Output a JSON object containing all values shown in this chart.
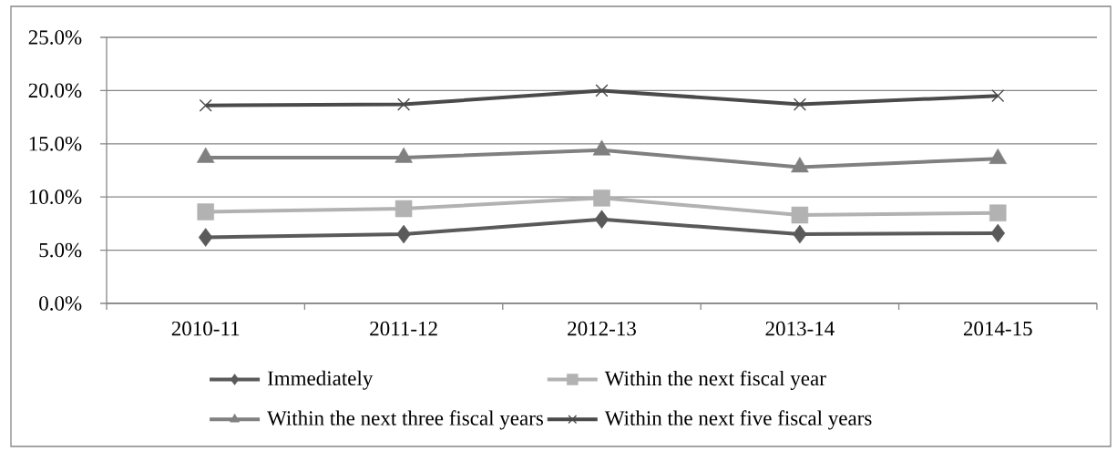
{
  "chart_data": {
    "type": "line",
    "categories": [
      "2010-11",
      "2011-12",
      "2012-13",
      "2013-14",
      "2014-15"
    ],
    "series": [
      {
        "name": "Immediately",
        "color": "#5a5a5a",
        "marker": "diamond",
        "values": [
          6.2,
          6.5,
          7.9,
          6.5,
          6.6
        ]
      },
      {
        "name": "Within the next fiscal year",
        "color": "#b2b2b2",
        "marker": "square",
        "values": [
          8.6,
          8.9,
          9.9,
          8.3,
          8.5
        ]
      },
      {
        "name": "Within the next three fiscal years",
        "color": "#808080",
        "marker": "triangle",
        "values": [
          13.7,
          13.7,
          14.4,
          12.8,
          13.6
        ]
      },
      {
        "name": "Within the next five fiscal years",
        "color": "#4a4a4a",
        "marker": "cross",
        "values": [
          18.6,
          18.7,
          20.0,
          18.7,
          19.5
        ]
      }
    ],
    "ylim": [
      0,
      25
    ],
    "yticks": [
      {
        "value": 0,
        "label": "0.0%"
      },
      {
        "value": 5,
        "label": "5.0%"
      },
      {
        "value": 10,
        "label": "10.0%"
      },
      {
        "value": 15,
        "label": "15.0%"
      },
      {
        "value": 20,
        "label": "20.0%"
      },
      {
        "value": 25,
        "label": "25.0%"
      }
    ],
    "grid": "y",
    "legend": "bottom",
    "line_style": "solid"
  }
}
